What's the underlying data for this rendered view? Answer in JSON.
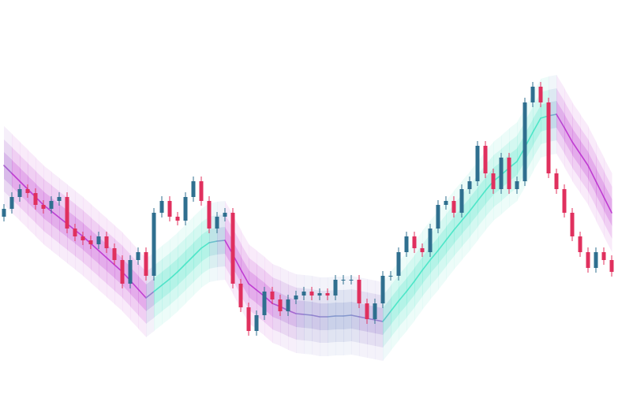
{
  "chart_data": {
    "type": "candlestick",
    "ylim": [
      0,
      500
    ],
    "colors": {
      "up": "#2f6f8f",
      "down": "#e0305e",
      "trend_up": "#4ee6c8",
      "trend_down": "#c03ed2"
    },
    "open": [
      225,
      235,
      250,
      260,
      255,
      240,
      235,
      245,
      250,
      210,
      200,
      195,
      190,
      200,
      185,
      170,
      140,
      170,
      180,
      150,
      230,
      245,
      225,
      220,
      250,
      270,
      245,
      210,
      225,
      230,
      140,
      110,
      80,
      100,
      130,
      120,
      105,
      120,
      125,
      130,
      125,
      128,
      125,
      145,
      145,
      145,
      115,
      95,
      115,
      150,
      150,
      180,
      200,
      185,
      180,
      210,
      240,
      245,
      230,
      260,
      270,
      315,
      280,
      260,
      300,
      260,
      270,
      370,
      390,
      370,
      280,
      260,
      230,
      200,
      180,
      160,
      180,
      170
    ],
    "high": [
      241,
      256,
      266,
      266,
      261,
      246,
      251,
      256,
      256,
      216,
      206,
      201,
      206,
      206,
      191,
      176,
      176,
      186,
      186,
      236,
      251,
      251,
      231,
      256,
      276,
      276,
      251,
      231,
      236,
      236,
      146,
      116,
      106,
      136,
      136,
      126,
      126,
      131,
      136,
      136,
      134,
      134,
      151,
      151,
      151,
      151,
      121,
      121,
      156,
      156,
      186,
      206,
      206,
      191,
      216,
      246,
      251,
      251,
      266,
      276,
      321,
      321,
      286,
      306,
      306,
      276,
      376,
      396,
      396,
      376,
      286,
      266,
      236,
      206,
      186,
      186,
      186,
      176
    ],
    "low": [
      219,
      229,
      244,
      249,
      234,
      229,
      229,
      239,
      204,
      194,
      189,
      184,
      184,
      179,
      164,
      134,
      134,
      164,
      144,
      144,
      224,
      219,
      214,
      214,
      244,
      239,
      204,
      204,
      219,
      134,
      104,
      74,
      74,
      94,
      114,
      99,
      99,
      114,
      119,
      119,
      119,
      119,
      119,
      139,
      139,
      109,
      89,
      89,
      109,
      144,
      144,
      174,
      179,
      174,
      174,
      204,
      234,
      224,
      224,
      254,
      264,
      274,
      254,
      254,
      254,
      254,
      264,
      364,
      364,
      274,
      254,
      224,
      194,
      174,
      154,
      154,
      164,
      149
    ],
    "close": [
      235,
      250,
      260,
      255,
      240,
      235,
      245,
      250,
      210,
      200,
      195,
      190,
      200,
      185,
      170,
      140,
      170,
      180,
      150,
      230,
      245,
      225,
      220,
      250,
      270,
      245,
      210,
      225,
      230,
      140,
      110,
      80,
      100,
      130,
      120,
      105,
      120,
      125,
      130,
      125,
      128,
      125,
      145,
      145,
      145,
      115,
      95,
      115,
      150,
      150,
      180,
      200,
      185,
      180,
      210,
      240,
      245,
      230,
      260,
      270,
      315,
      280,
      260,
      300,
      260,
      270,
      370,
      390,
      370,
      280,
      260,
      230,
      200,
      180,
      160,
      180,
      170,
      155
    ],
    "moving_average": [
      290,
      280,
      270,
      260,
      250,
      240,
      232,
      224,
      216,
      208,
      200,
      191,
      182,
      173,
      164,
      155,
      144,
      133,
      122,
      130,
      138,
      146,
      155,
      165,
      175,
      185,
      192,
      194,
      195,
      177,
      158,
      140,
      132,
      124,
      115,
      111,
      106,
      102,
      101,
      100,
      98,
      98,
      99,
      99,
      100,
      98,
      96,
      94,
      92,
      105,
      118,
      130,
      143,
      157,
      170,
      182,
      195,
      208,
      220,
      232,
      245,
      258,
      270,
      278,
      287,
      295,
      313,
      332,
      350,
      353,
      355,
      338,
      320,
      305,
      290,
      270,
      250,
      230
    ],
    "band_widths": [
      50,
      33,
      17
    ]
  }
}
